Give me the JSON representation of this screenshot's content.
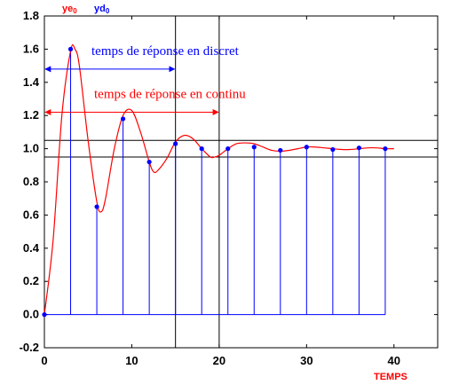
{
  "chart_data": {
    "type": "line",
    "title": "",
    "xlabel": "TEMPS",
    "ylabel": "",
    "xlim": [
      0,
      45
    ],
    "ylim": [
      -0.2,
      1.8
    ],
    "x_ticks": [
      0,
      10,
      20,
      30,
      40
    ],
    "x_tick_labels": [
      "0",
      "10",
      "20",
      "30",
      "40"
    ],
    "y_ticks": [
      -0.2,
      0.0,
      0.2,
      0.4,
      0.6,
      0.8,
      1.0,
      1.2,
      1.4,
      1.6,
      1.8
    ],
    "y_tick_labels": [
      "-0.2",
      "0.0",
      "0.2",
      "0.4",
      "0.6",
      "0.8",
      "1.0",
      "1.2",
      "1.4",
      "1.6",
      "1.8"
    ],
    "grid": false,
    "legend": [
      {
        "label": "ye",
        "subscript": "0",
        "color": "#ff0000"
      },
      {
        "label": "yd",
        "subscript": "0",
        "color": "#0000ff"
      }
    ],
    "series": [
      {
        "name": "ye",
        "color": "#ff0000",
        "kind": "line",
        "x": [
          0,
          1,
          2,
          3,
          3.5,
          4,
          5,
          6,
          6.5,
          7,
          8,
          9,
          10,
          11,
          12,
          12.5,
          13,
          14,
          15,
          16,
          17,
          18,
          19,
          19.5,
          20,
          21,
          22,
          23,
          24,
          25,
          26,
          27,
          28,
          29,
          30,
          31,
          32,
          33,
          34,
          35,
          36,
          37,
          38,
          39,
          40
        ],
        "y": [
          0,
          0.45,
          1.2,
          1.59,
          1.6,
          1.5,
          1.05,
          0.68,
          0.62,
          0.7,
          1.0,
          1.2,
          1.23,
          1.1,
          0.92,
          0.86,
          0.87,
          0.94,
          1.04,
          1.08,
          1.06,
          1.0,
          0.95,
          0.95,
          0.96,
          1.0,
          1.03,
          1.035,
          1.03,
          1.01,
          0.99,
          0.985,
          0.99,
          1.0,
          1.01,
          1.01,
          1.005,
          1.0,
          0.995,
          0.995,
          1.0,
          1.005,
          1.005,
          1.0,
          1.0
        ]
      },
      {
        "name": "yd",
        "color": "#0000ff",
        "kind": "stem",
        "x": [
          0,
          3,
          6,
          9,
          12,
          15,
          18,
          21,
          24,
          27,
          30,
          33,
          36,
          39
        ],
        "y": [
          0,
          1.6,
          0.65,
          1.18,
          0.92,
          1.03,
          1.0,
          1.0,
          1.01,
          0.99,
          1.01,
          0.995,
          1.005,
          1.0
        ]
      }
    ],
    "reference_lines": {
      "horizontal": [
        1.05,
        0.95
      ],
      "vertical": [
        15,
        20
      ]
    },
    "annotations": [
      {
        "text": "temps de réponse en discret",
        "color": "#0000ff",
        "x_from": 0,
        "x_to": 15,
        "y": 1.48
      },
      {
        "text": "temps de réponse en continu",
        "color": "#ff0000",
        "x_from": 0,
        "x_to": 20,
        "y": 1.22
      }
    ]
  }
}
